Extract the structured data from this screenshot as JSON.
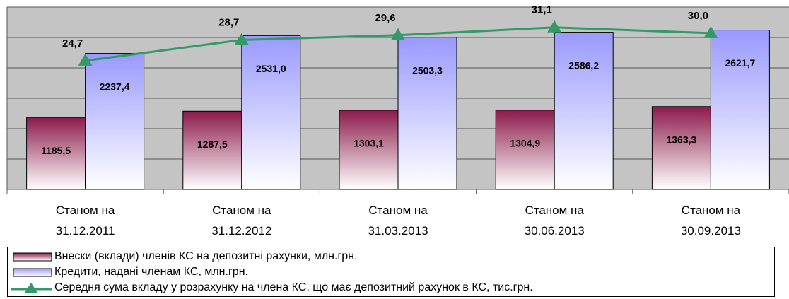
{
  "chart_data": {
    "type": "bar",
    "categories": [
      "Станом на 31.12.2011",
      "Станом на 31.12.2012",
      "Станом на 31.03.2013",
      "Станом на 30.06.2013",
      "Станом на 30.09.2013"
    ],
    "series": [
      {
        "name": "Внески (вклади) членів КС на депозитні рахунки, млн.грн.",
        "type": "bar",
        "color": "#8b1a4a",
        "values": [
          1185.5,
          1287.5,
          1303.1,
          1304.9,
          1363.3
        ],
        "value_labels": [
          "1185,5",
          "1287,5",
          "1303,1",
          "1304,9",
          "1363,3"
        ]
      },
      {
        "name": "Кредити, надані членам КС, млн.грн.",
        "type": "bar",
        "color": "#9999ff",
        "values": [
          2237.4,
          2531.0,
          2503.3,
          2586.2,
          2621.7
        ],
        "value_labels": [
          "2237,4",
          "2531,0",
          "2503,3",
          "2586,2",
          "2621,7"
        ]
      },
      {
        "name": "Середня сума вкладу у розрахунку на члена КС, що має депозитний рахунок в КС, тис.грн.",
        "type": "line",
        "axis": "y2",
        "color": "#339966",
        "values": [
          24.7,
          28.7,
          29.6,
          31.1,
          30.0
        ],
        "value_labels": [
          "24,7",
          "28,7",
          "29,6",
          "31,1",
          "30,0"
        ]
      }
    ],
    "ylim": [
      0,
      3000
    ],
    "yticks": [
      0,
      500,
      1000,
      1500,
      2000,
      2500,
      3000
    ],
    "y2lim": [
      0,
      35
    ],
    "grid": true,
    "legend": "bottom"
  }
}
